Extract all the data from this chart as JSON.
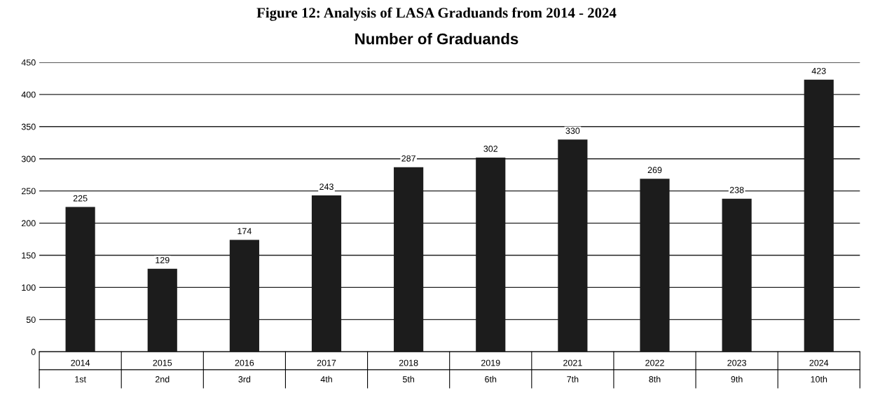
{
  "chart_data": {
    "type": "bar",
    "title": "Figure 12: Analysis of LASA Graduands from 2014 - 2024",
    "subtitle": "Number of Graduands",
    "categories": [
      "2014\n1st",
      "2015\n2nd",
      "2016\n3rd",
      "2017\n4th",
      "2018\n5th",
      "2019\n6th",
      "2021\n7th",
      "2022\n8th",
      "2023\n9th",
      "2024\n10th"
    ],
    "values": [
      225,
      129,
      174,
      243,
      287,
      302,
      330,
      269,
      238,
      423
    ],
    "color": "#1c1c1c",
    "ylim": [
      0,
      450
    ],
    "yticks": [
      0,
      50,
      100,
      150,
      200,
      250,
      300,
      350,
      400,
      450
    ],
    "grid": "y",
    "data_labels": true
  }
}
